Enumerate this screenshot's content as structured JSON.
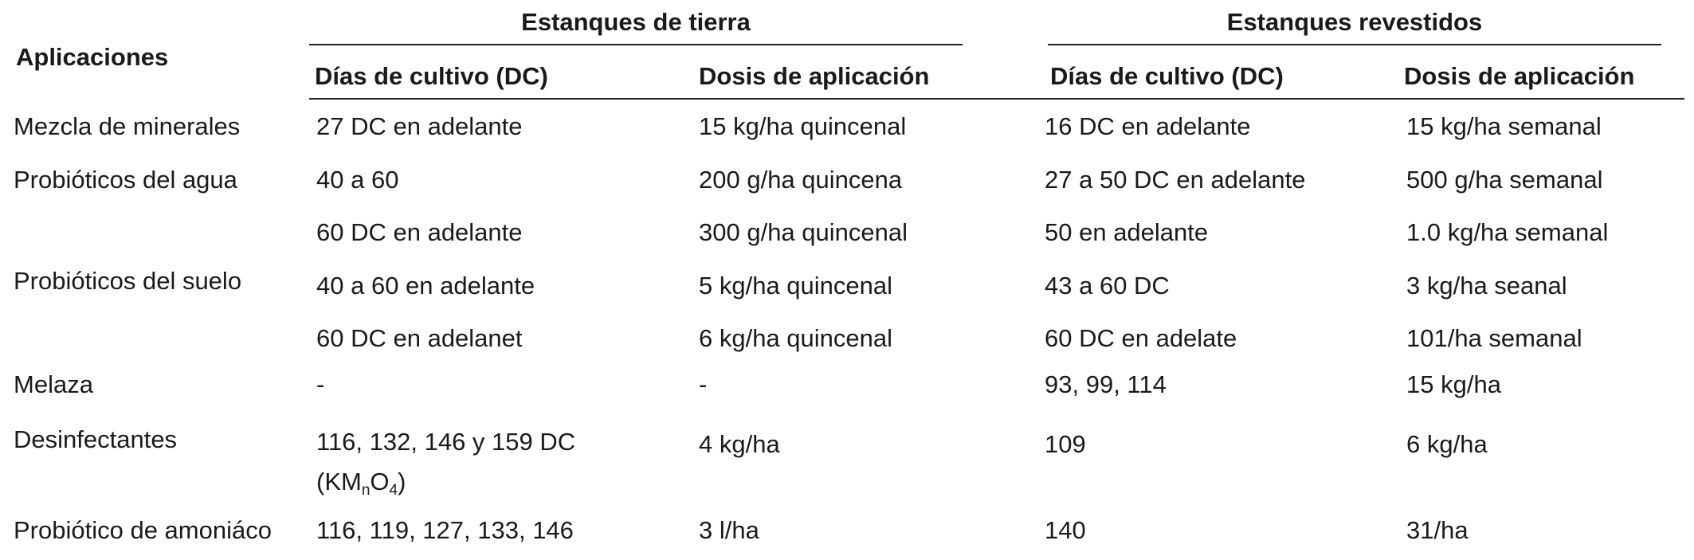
{
  "table": {
    "row_header_label": "Aplicaciones",
    "groups": [
      {
        "title": "Estanques de tierra",
        "columns": [
          "Días de cultivo (DC)",
          "Dosis de aplicación"
        ]
      },
      {
        "title": "Estanques revestidos",
        "columns": [
          "Días de cultivo (DC)",
          "Dosis de aplicación"
        ]
      }
    ],
    "rows": [
      {
        "aplicacion": "Mezcla de minerales",
        "tierra_dc": "27 DC en adelante",
        "tierra_dosis": "15 kg/ha quincenal",
        "revestidos_dc": "16 DC en adelante",
        "revestidos_dosis": "15 kg/ha semanal"
      },
      {
        "aplicacion": "Probióticos del agua",
        "tierra_dc": "40 a 60",
        "tierra_dosis": "200 g/ha quincena",
        "revestidos_dc": "27 a 50 DC en adelante",
        "revestidos_dosis": "500 g/ha semanal"
      },
      {
        "aplicacion": "",
        "tierra_dc": "60 DC en adelante",
        "tierra_dosis": "300 g/ha quincenal",
        "revestidos_dc": "50 en adelante",
        "revestidos_dosis": "1.0 kg/ha semanal"
      },
      {
        "aplicacion": "Probióticos del suelo",
        "tierra_dc": "40 a 60 en adelante",
        "tierra_dosis": "5 kg/ha quincenal",
        "revestidos_dc": "43 a 60 DC",
        "revestidos_dosis": "3 kg/ha seanal"
      },
      {
        "aplicacion": "",
        "tierra_dc": "60 DC en adelanet",
        "tierra_dosis": "6 kg/ha quincenal",
        "revestidos_dc": "60 DC en adelate",
        "revestidos_dosis": "101/ha semanal"
      },
      {
        "aplicacion": "Melaza",
        "tierra_dc": "-",
        "tierra_dosis": "-",
        "revestidos_dc": "93, 99, 114",
        "revestidos_dosis": "15 kg/ha"
      },
      {
        "aplicacion": "Desinfectantes",
        "tierra_dc": "116, 132, 146 y 159 DC",
        "tierra_dc_line2": {
          "prefix": "(KM",
          "sub1": "n",
          "mid": "O",
          "sub2": "4",
          "suffix": ")"
        },
        "tierra_dosis": "4 kg/ha",
        "revestidos_dc": "109",
        "revestidos_dosis": "6 kg/ha"
      },
      {
        "aplicacion": "Probiótico de amoniáco",
        "tierra_dc": "116, 119, 127, 133, 146",
        "tierra_dosis": "3 l/ha",
        "revestidos_dc": "140",
        "revestidos_dosis": "31/ha"
      }
    ]
  }
}
